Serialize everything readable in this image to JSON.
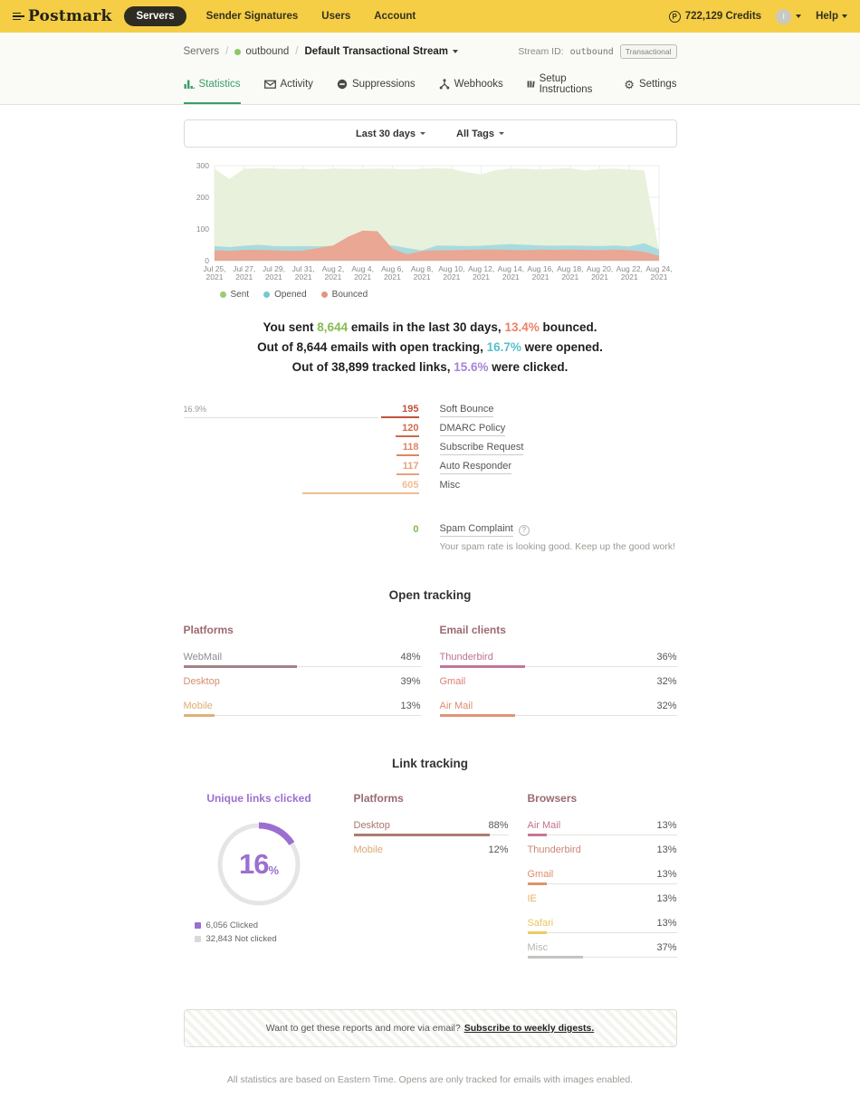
{
  "navbar": {
    "logo": "Postmark",
    "servers_pill": "Servers",
    "links": [
      "Sender Signatures",
      "Users",
      "Account"
    ],
    "credits": "722,129 Credits",
    "help": "Help",
    "bg_color": "#F5CE45"
  },
  "breadcrumb": {
    "servers": "Servers",
    "server_name": "outbound",
    "stream_name": "Default Transactional Stream",
    "stream_id_label": "Stream ID:",
    "stream_id_value": "outbound",
    "stream_type_badge": "Transactional"
  },
  "tabs": [
    {
      "label": "Statistics",
      "active": true
    },
    {
      "label": "Activity",
      "active": false
    },
    {
      "label": "Suppressions",
      "active": false
    },
    {
      "label": "Webhooks",
      "active": false
    },
    {
      "label": "Setup Instructions",
      "active": false
    },
    {
      "label": "Settings",
      "active": false
    }
  ],
  "filters": {
    "date_range": "Last 30 days",
    "tags": "All Tags"
  },
  "chart_data": [
    {
      "type": "area",
      "title": "Emails sent, opened and bounced over the last 30 days",
      "ylim": [
        0,
        300
      ],
      "yticks": [
        0,
        100,
        200,
        300
      ],
      "x_tick_labels": [
        "Jul 25,",
        "Jul 27,",
        "Jul 29,",
        "Jul 31,",
        "Aug 2,",
        "Aug 4,",
        "Aug 6,",
        "Aug 8,",
        "Aug 10,",
        "Aug 12,",
        "Aug 14,",
        "Aug 16,",
        "Aug 18,",
        "Aug 20,",
        "Aug 22,",
        "Aug 24,"
      ],
      "x_tick_year": "2021",
      "grid": true,
      "legend_position": "bottom-left",
      "series": [
        {
          "name": "Sent",
          "fill": "#E7F1DB",
          "dot": "#9CCB72",
          "values": [
            290,
            258,
            290,
            292,
            291,
            289,
            290,
            288,
            291,
            290,
            289,
            291,
            290,
            288,
            290,
            292,
            290,
            279,
            272,
            286,
            291,
            290,
            288,
            290,
            292,
            285,
            289,
            291,
            288,
            285,
            30
          ]
        },
        {
          "name": "Opened",
          "fill": "#A9DADF",
          "dot": "#76C7CF",
          "values": [
            46,
            43,
            47,
            50,
            46,
            45,
            46,
            45,
            47,
            46,
            48,
            50,
            48,
            40,
            32,
            48,
            47,
            46,
            47,
            50,
            52,
            50,
            48,
            47,
            48,
            47,
            46,
            48,
            45,
            55,
            35
          ]
        },
        {
          "name": "Bounced",
          "fill": "#E9A794",
          "dot": "#E39480",
          "values": [
            33,
            31,
            34,
            34,
            33,
            31,
            32,
            40,
            48,
            75,
            95,
            93,
            38,
            20,
            31,
            33,
            33,
            34,
            35,
            35,
            34,
            33,
            35,
            34,
            35,
            34,
            33,
            35,
            33,
            28,
            15
          ]
        }
      ]
    },
    {
      "type": "bar",
      "title": "Bounce breakdown",
      "top_percent_label": "16.9%",
      "items": [
        {
          "label": "Soft Bounce",
          "value": 195,
          "display": "195",
          "color": "#C3523B",
          "linked": true,
          "show_track": true
        },
        {
          "label": "DMARC Policy",
          "value": 120,
          "display": "120",
          "color": "#CE6C4E",
          "linked": true,
          "show_track": false
        },
        {
          "label": "Subscribe Request",
          "value": 118,
          "display": "118",
          "color": "#DA8765",
          "linked": true,
          "show_track": false
        },
        {
          "label": "Auto Responder",
          "value": 117,
          "display": "117",
          "color": "#E5A27D",
          "linked": true,
          "show_track": false
        },
        {
          "label": "Misc",
          "value": 605,
          "display": "605",
          "color": "#EEBE94",
          "linked": false,
          "show_track": false
        }
      ]
    },
    {
      "type": "pie",
      "title": "Unique links clicked",
      "percent": 16,
      "percent_display": "16",
      "percent_sign": "%",
      "slices": [
        {
          "label": "Clicked",
          "value": 6056,
          "display": "6,056 Clicked",
          "color": "#9B6FD0"
        },
        {
          "label": "Not clicked",
          "value": 32843,
          "display": "32,843 Not clicked",
          "color": "#D9D9DD"
        }
      ]
    }
  ],
  "summary": {
    "l1a": "You sent ",
    "l1_sent": "8,644",
    "l1b": " emails in the last 30 days, ",
    "l1_bounced": "13.4%",
    "l1c": " bounced.",
    "l2a": "Out of 8,644 emails with open tracking, ",
    "l2_opened": "16.7%",
    "l2b": " were opened.",
    "l3a": "Out of 38,899 tracked links, ",
    "l3_clicked": "15.6%",
    "l3b": " were clicked.",
    "sent_color": "#84BD4F",
    "bounced_color": "#ED7F68",
    "opened_color": "#5BBFCE",
    "clicked_color": "#A584D8"
  },
  "spam": {
    "count": "0",
    "label": "Spam Complaint",
    "help_icon": "?",
    "note": "Your spam rate is looking good. Keep up the good work!"
  },
  "open_tracking": {
    "title": "Open tracking",
    "platforms_head": "Platforms",
    "platforms": [
      {
        "label": "WebMail",
        "pct": 48,
        "pct_display": "48%",
        "label_color": "#8F8A96",
        "bar_color": "#A28289",
        "show_bar": true
      },
      {
        "label": "Desktop",
        "pct": 39,
        "pct_display": "39%",
        "label_color": "#D38D72",
        "bar_color": "#D89473",
        "show_bar": false
      },
      {
        "label": "Mobile",
        "pct": 13,
        "pct_display": "13%",
        "label_color": "#DCAE74",
        "bar_color": "#DFB279",
        "show_bar": true
      }
    ],
    "clients_head": "Email clients",
    "clients": [
      {
        "label": "Thunderbird",
        "pct": 36,
        "pct_display": "36%",
        "label_color": "#BC7093",
        "bar_color": "#C1769A",
        "show_bar": true
      },
      {
        "label": "Gmail",
        "pct": 32,
        "pct_display": "32%",
        "label_color": "#DC7F70",
        "bar_color": "#DC7F70",
        "show_bar": false
      },
      {
        "label": "Air Mail",
        "pct": 32,
        "pct_display": "32%",
        "label_color": "#DC8B72",
        "bar_color": "#E09577",
        "show_bar": true
      }
    ]
  },
  "link_tracking": {
    "title": "Link tracking",
    "donut_head": "Unique links clicked",
    "platforms_head": "Platforms",
    "platforms": [
      {
        "label": "Desktop",
        "pct": 88,
        "pct_display": "88%",
        "label_color": "#A8766B",
        "bar_color": "#AD7D72",
        "show_bar": true
      },
      {
        "label": "Mobile",
        "pct": 12,
        "pct_display": "12%",
        "label_color": "#DCA873",
        "bar_color": "#DCA873",
        "show_bar": false
      }
    ],
    "browsers_head": "Browsers",
    "browsers": [
      {
        "label": "Air Mail",
        "pct": 13,
        "pct_display": "13%",
        "label_color": "#C2718F",
        "bar_color": "#C77796",
        "show_bar": true
      },
      {
        "label": "Thunderbird",
        "pct": 13,
        "pct_display": "13%",
        "label_color": "#CB8678",
        "bar_color": "#CB8678",
        "show_bar": false
      },
      {
        "label": "Gmail",
        "pct": 13,
        "pct_display": "13%",
        "label_color": "#DE8E69",
        "bar_color": "#E0926D",
        "show_bar": true
      },
      {
        "label": "IE",
        "pct": 13,
        "pct_display": "13%",
        "label_color": "#E5B264",
        "bar_color": "#E5B264",
        "show_bar": false
      },
      {
        "label": "Safari",
        "pct": 13,
        "pct_display": "13%",
        "label_color": "#E9C75F",
        "bar_color": "#ECCB62",
        "show_bar": true
      },
      {
        "label": "Misc",
        "pct": 37,
        "pct_display": "37%",
        "label_color": "#B5B5B2",
        "bar_color": "#C4C4C0",
        "show_bar": true
      }
    ]
  },
  "subscribe": {
    "text": "Want to get these reports and more via email?",
    "link": "Subscribe to weekly digests."
  },
  "footer": {
    "note": "All statistics are based on Eastern Time. Opens are only tracked for emails with images enabled."
  }
}
